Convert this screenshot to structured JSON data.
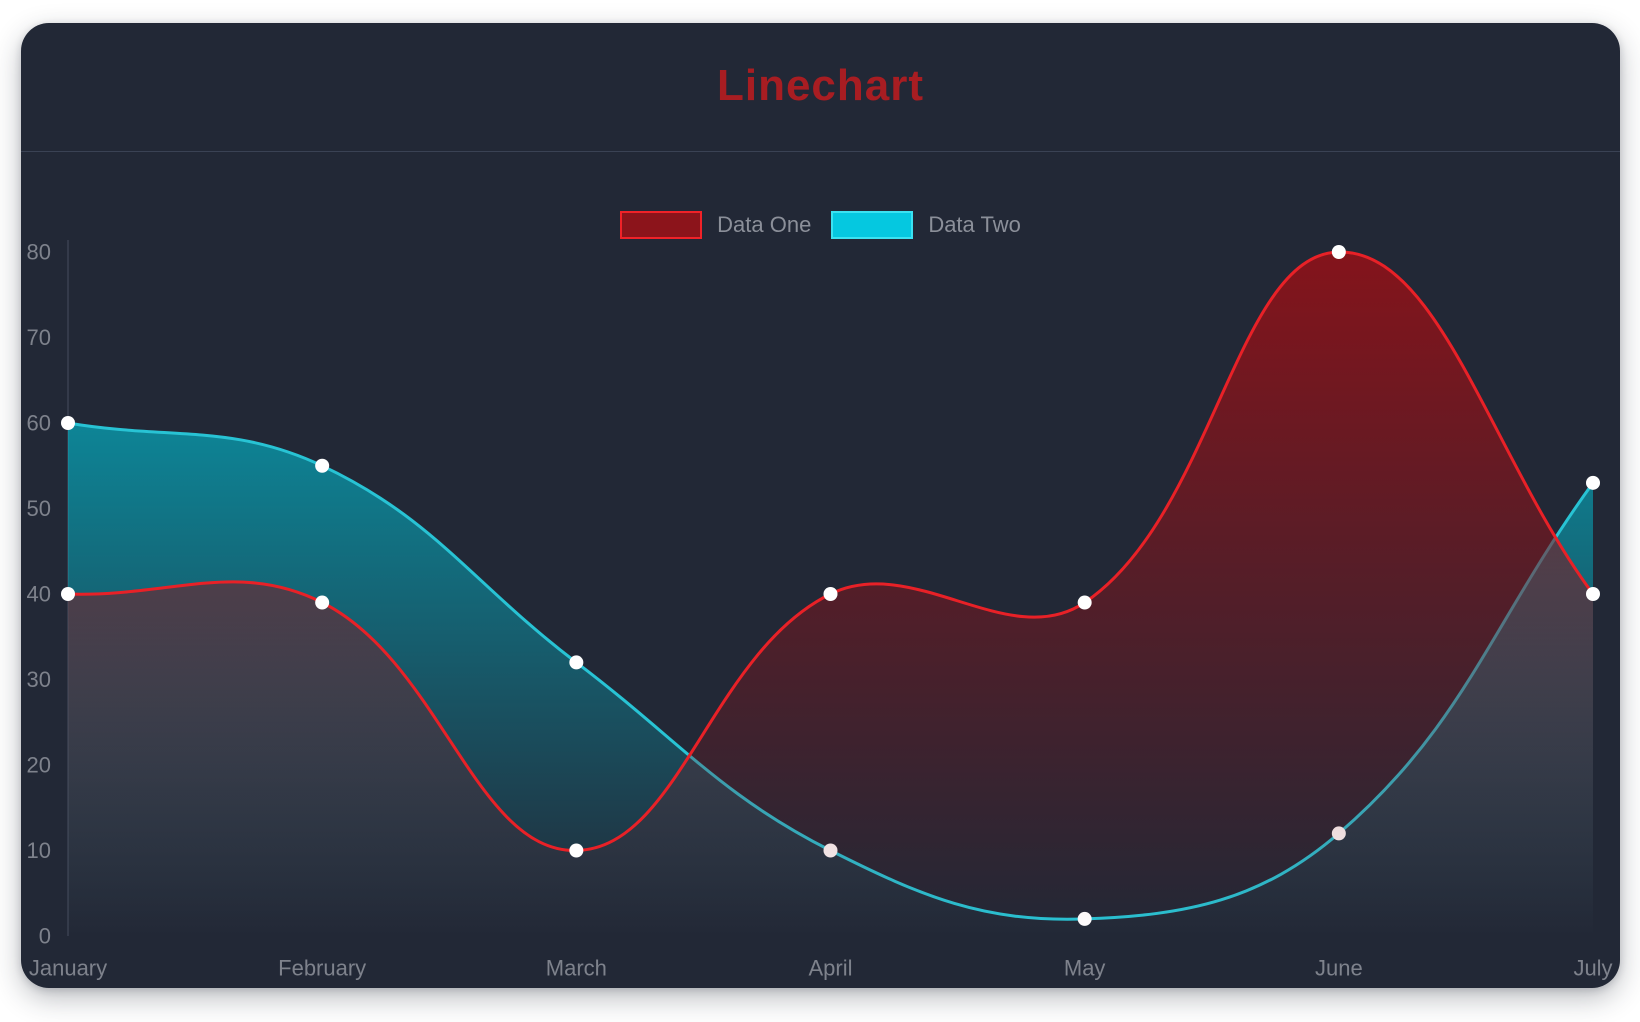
{
  "page": {
    "background": "#ffffff"
  },
  "card": {
    "background": "#222836",
    "divider_color": "#3a4254"
  },
  "header": {
    "title": "Linechart",
    "title_color": "#a81d22"
  },
  "chart_data": {
    "type": "line",
    "title": "Linechart",
    "categories": [
      "January",
      "February",
      "March",
      "April",
      "May",
      "June",
      "July"
    ],
    "series": [
      {
        "name": "Data One",
        "values": [
          40,
          39,
          10,
          40,
          39,
          80,
          40
        ],
        "line_color": "#e82127",
        "fill_top": "rgba(136,19,26,0.96)",
        "fill_bottom": "rgba(136,19,26,0)",
        "legend_swatch_fill": "#8c141b",
        "legend_swatch_border": "#f02228"
      },
      {
        "name": "Data Two",
        "values": [
          60,
          55,
          32,
          10,
          2,
          12,
          53
        ],
        "line_color": "#28c3d4",
        "fill_top": "rgba(0,191,211,0.82)",
        "fill_bottom": "rgba(0,191,211,0)",
        "legend_swatch_fill": "#05c8e0",
        "legend_swatch_border": "#3be2f1"
      }
    ],
    "y_ticks": [
      0,
      10,
      20,
      30,
      40,
      50,
      60,
      70,
      80
    ],
    "ylim": [
      0,
      80
    ],
    "grid": "off",
    "legend_position": "top-center",
    "line_tension": 0.4,
    "point_color": "#ffffff",
    "axis_label_color": "#7e828c",
    "axis_line_color": "#3a4150"
  }
}
